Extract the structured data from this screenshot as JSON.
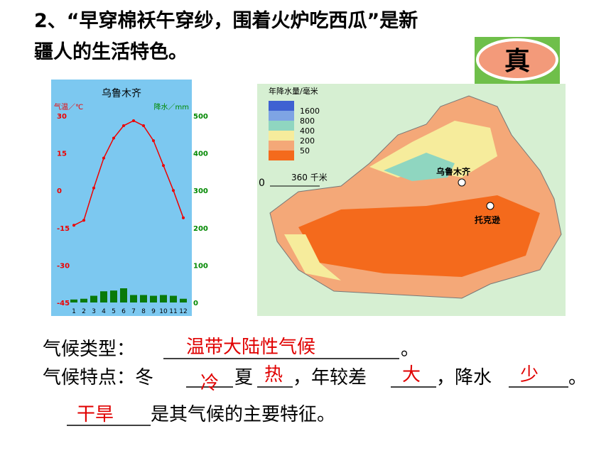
{
  "question": {
    "lines": [
      "2、“早穿棉袄午穿纱，围着火炉吃西瓜”是新",
      "疆人的生活特色。"
    ]
  },
  "stamp": "真",
  "climograph": {
    "type": "climograph",
    "title": "乌鲁木齐",
    "temp_label": "气温／℃",
    "precip_label": "降水／mm",
    "categories": [
      1,
      2,
      3,
      4,
      5,
      6,
      7,
      8,
      9,
      10,
      11,
      12
    ],
    "temperature": [
      -14,
      -12,
      1,
      13,
      21,
      26,
      28,
      26,
      20,
      10,
      0,
      -11
    ],
    "precipitation": [
      8,
      10,
      18,
      30,
      32,
      38,
      20,
      20,
      18,
      20,
      18,
      10
    ],
    "ylim": [
      -45,
      30
    ],
    "yticks": [
      30,
      15,
      0,
      -15,
      -30,
      -45
    ],
    "y2lim": [
      0,
      500
    ],
    "y2ticks": [
      500,
      400,
      300,
      200,
      100,
      0
    ]
  },
  "map": {
    "legend_title": "年降水量/毫米",
    "legend": [
      1600,
      800,
      400,
      200,
      50
    ],
    "scale_zero": 0,
    "scale": "360 千米",
    "cities": [
      "乌鲁木齐",
      "托克逊"
    ]
  },
  "answers": {
    "climate_type_label": "气候类型：",
    "climate_type": "温带大陆性气候",
    "end1": "。",
    "features_label": "气候特点：冬",
    "winter": "冷",
    "summer_label": "夏",
    "summer": "热",
    "range_label": "，年较差",
    "range": "大",
    "precip_label": "，降水",
    "precip": "少",
    "end2": "。",
    "key": "干旱",
    "key_text": "是其气候的主要特征。"
  }
}
